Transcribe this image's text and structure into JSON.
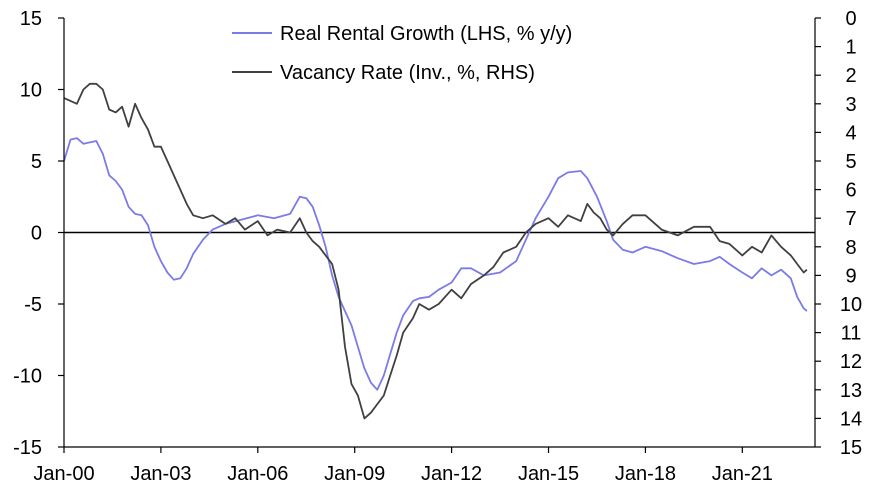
{
  "chart_data": {
    "type": "line",
    "legend": {
      "placement": "top-center",
      "entries": [
        {
          "label": "Real Rental Growth (LHS, % y/y)",
          "series": "rental"
        },
        {
          "label": "Vacancy Rate (Inv., %, RHS)",
          "series": "vacancy"
        }
      ]
    },
    "x_ticks": [
      "Jan-00",
      "Jan-03",
      "Jan-06",
      "Jan-09",
      "Jan-12",
      "Jan-15",
      "Jan-18",
      "Jan-21"
    ],
    "x_range": [
      2000.0,
      2023.25
    ],
    "y_left": {
      "range": [
        -15,
        15
      ],
      "ticks": [
        "15",
        "10",
        "5",
        "0",
        "-5",
        "-10",
        "-15"
      ],
      "tick_values": [
        15,
        10,
        5,
        0,
        -5,
        -10,
        -15
      ]
    },
    "y_right": {
      "range": [
        0,
        15
      ],
      "inverted": true,
      "ticks": [
        "0",
        "1",
        "2",
        "3",
        "4",
        "5",
        "6",
        "7",
        "8",
        "9",
        "10",
        "11",
        "12",
        "13",
        "14",
        "15"
      ],
      "tick_values": [
        0,
        1,
        2,
        3,
        4,
        5,
        6,
        7,
        8,
        9,
        10,
        11,
        12,
        13,
        14,
        15
      ]
    },
    "zero_line_left": 0,
    "series": [
      {
        "id": "rental",
        "axis": "left",
        "color": "#7b7be8",
        "x": [
          2000.0,
          2000.2,
          2000.4,
          2000.6,
          2000.8,
          2001.0,
          2001.2,
          2001.4,
          2001.6,
          2001.8,
          2002.0,
          2002.2,
          2002.4,
          2002.6,
          2002.8,
          2003.0,
          2003.2,
          2003.4,
          2003.6,
          2003.8,
          2004.0,
          2004.3,
          2004.6,
          2005.0,
          2005.5,
          2006.0,
          2006.5,
          2007.0,
          2007.3,
          2007.5,
          2007.7,
          2007.9,
          2008.1,
          2008.3,
          2008.5,
          2008.7,
          2008.9,
          2009.1,
          2009.3,
          2009.5,
          2009.7,
          2009.9,
          2010.1,
          2010.3,
          2010.5,
          2010.8,
          2011.0,
          2011.3,
          2011.6,
          2012.0,
          2012.3,
          2012.6,
          2013.0,
          2013.5,
          2014.0,
          2014.3,
          2014.6,
          2015.0,
          2015.3,
          2015.6,
          2016.0,
          2016.2,
          2016.5,
          2016.8,
          2017.0,
          2017.3,
          2017.6,
          2018.0,
          2018.5,
          2019.0,
          2019.5,
          2020.0,
          2020.3,
          2020.6,
          2021.0,
          2021.3,
          2021.6,
          2021.9,
          2022.2,
          2022.5,
          2022.7,
          2022.9,
          2023.0
        ],
        "values": [
          5.0,
          6.5,
          6.6,
          6.2,
          6.3,
          6.4,
          5.5,
          4.0,
          3.6,
          3.0,
          1.8,
          1.3,
          1.2,
          0.5,
          -1.0,
          -2.0,
          -2.8,
          -3.3,
          -3.2,
          -2.5,
          -1.5,
          -0.5,
          0.2,
          0.6,
          0.9,
          1.2,
          1.0,
          1.3,
          2.5,
          2.4,
          1.8,
          0.5,
          -1.0,
          -3.0,
          -4.5,
          -5.5,
          -6.5,
          -8.0,
          -9.5,
          -10.5,
          -11.0,
          -10.0,
          -8.5,
          -7.0,
          -5.8,
          -4.8,
          -4.6,
          -4.5,
          -4.0,
          -3.5,
          -2.5,
          -2.5,
          -3.0,
          -2.8,
          -2.0,
          -0.5,
          1.0,
          2.5,
          3.8,
          4.2,
          4.3,
          3.8,
          2.5,
          0.8,
          -0.5,
          -1.2,
          -1.4,
          -1.0,
          -1.3,
          -1.8,
          -2.2,
          -2.0,
          -1.7,
          -2.2,
          -2.8,
          -3.2,
          -2.5,
          -3.0,
          -2.6,
          -3.2,
          -4.5,
          -5.3,
          -5.5
        ]
      },
      {
        "id": "vacancy",
        "axis": "right",
        "color": "#404040",
        "x": [
          2000.0,
          2000.2,
          2000.4,
          2000.6,
          2000.8,
          2001.0,
          2001.2,
          2001.4,
          2001.6,
          2001.8,
          2002.0,
          2002.2,
          2002.4,
          2002.6,
          2002.8,
          2003.0,
          2003.2,
          2003.4,
          2003.6,
          2003.8,
          2004.0,
          2004.3,
          2004.6,
          2005.0,
          2005.3,
          2005.6,
          2006.0,
          2006.3,
          2006.6,
          2007.0,
          2007.3,
          2007.5,
          2007.7,
          2007.9,
          2008.1,
          2008.3,
          2008.5,
          2008.7,
          2008.9,
          2009.1,
          2009.3,
          2009.5,
          2009.7,
          2009.9,
          2010.1,
          2010.3,
          2010.5,
          2010.8,
          2011.0,
          2011.3,
          2011.6,
          2012.0,
          2012.3,
          2012.6,
          2013.0,
          2013.3,
          2013.6,
          2014.0,
          2014.3,
          2014.6,
          2015.0,
          2015.3,
          2015.6,
          2016.0,
          2016.2,
          2016.4,
          2016.6,
          2016.8,
          2017.0,
          2017.3,
          2017.6,
          2018.0,
          2018.5,
          2019.0,
          2019.5,
          2020.0,
          2020.3,
          2020.6,
          2021.0,
          2021.3,
          2021.6,
          2021.9,
          2022.2,
          2022.5,
          2022.7,
          2022.9,
          2023.0
        ],
        "values": [
          2.8,
          2.9,
          3.0,
          2.5,
          2.3,
          2.3,
          2.5,
          3.2,
          3.3,
          3.1,
          3.8,
          3.0,
          3.5,
          3.9,
          4.5,
          4.5,
          5.0,
          5.5,
          6.0,
          6.5,
          6.9,
          7.0,
          6.9,
          7.2,
          7.0,
          7.4,
          7.1,
          7.6,
          7.4,
          7.5,
          7.0,
          7.5,
          7.8,
          8.0,
          8.3,
          8.6,
          9.5,
          11.5,
          12.8,
          13.2,
          14.0,
          13.8,
          13.5,
          13.2,
          12.5,
          11.8,
          11.0,
          10.5,
          10.0,
          10.2,
          10.0,
          9.5,
          9.8,
          9.3,
          9.0,
          8.7,
          8.2,
          8.0,
          7.5,
          7.2,
          7.0,
          7.3,
          6.9,
          7.1,
          6.5,
          6.8,
          7.0,
          7.4,
          7.6,
          7.2,
          6.9,
          6.9,
          7.4,
          7.6,
          7.3,
          7.3,
          7.8,
          7.9,
          8.3,
          8.0,
          8.2,
          7.6,
          8.0,
          8.3,
          8.6,
          8.9,
          8.8
        ]
      }
    ]
  }
}
